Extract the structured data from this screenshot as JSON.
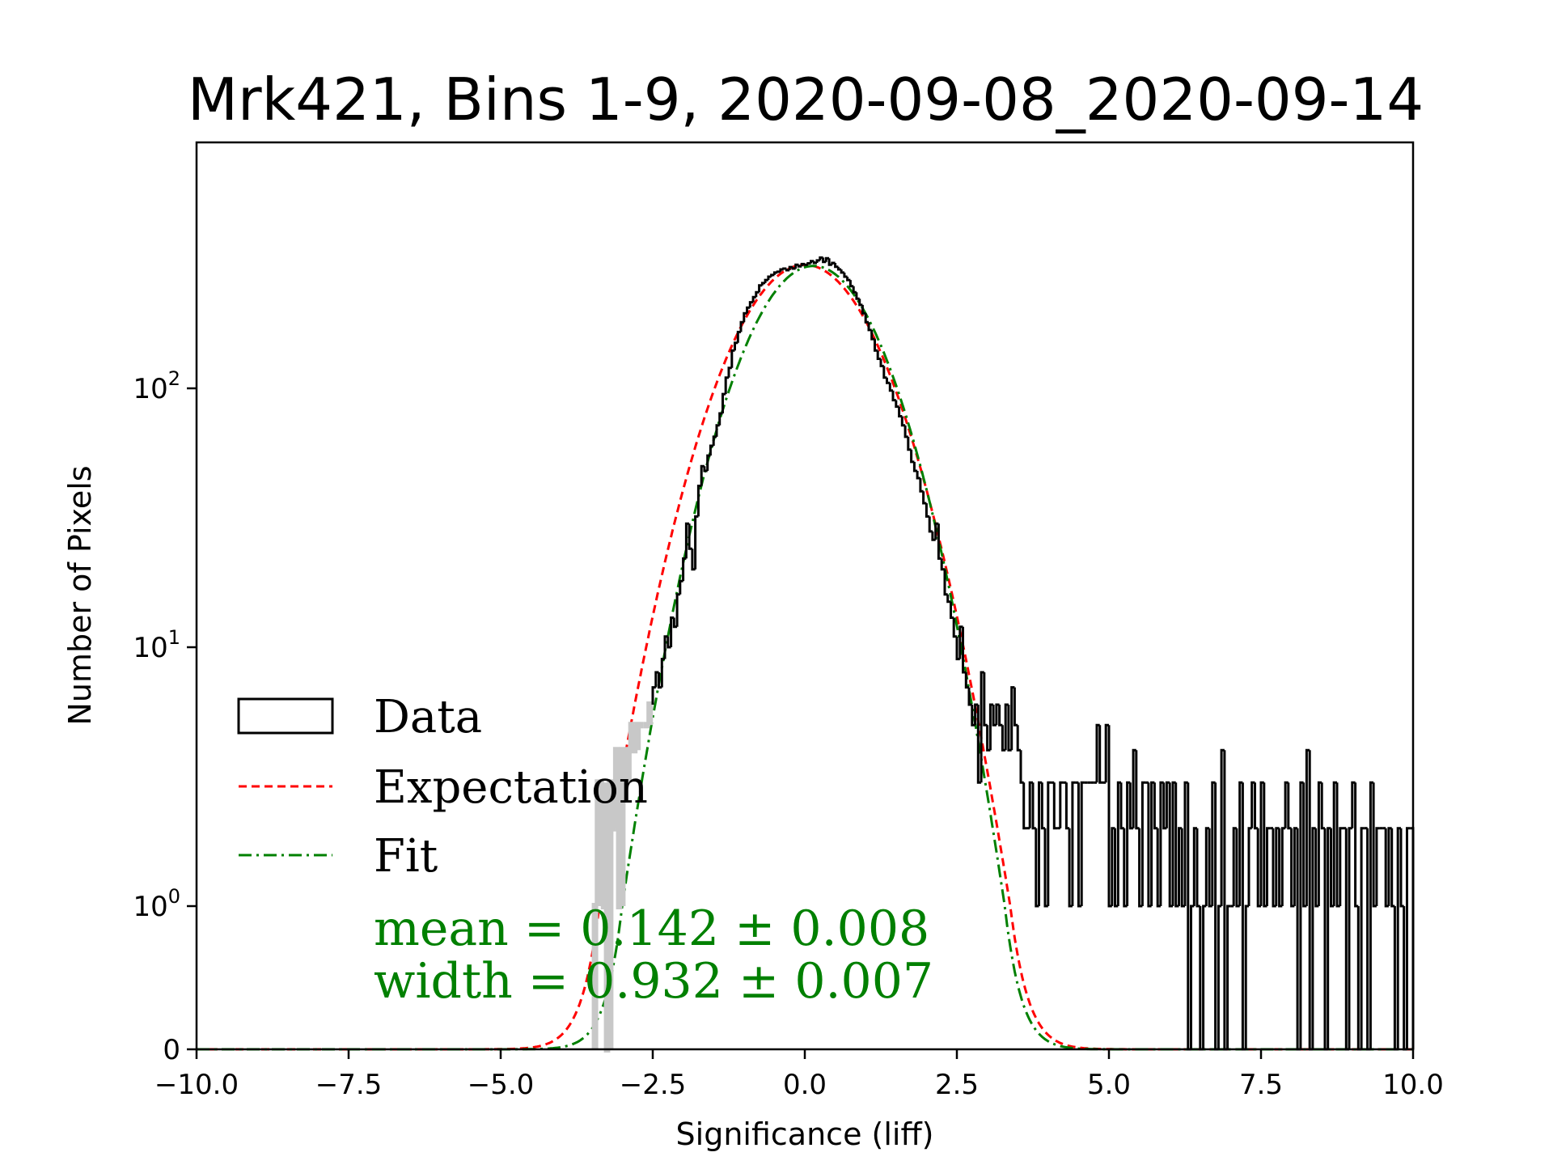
{
  "chart_data": {
    "type": "histogram",
    "title": "Mrk421, Bins 1-9, 2020-09-08_2020-09-14",
    "xlabel": "Significance (liff)",
    "ylabel": "Number of Pixels",
    "xlim": [
      -10,
      10
    ],
    "yscale": "symlog",
    "x_ticks": [
      -10,
      -7.5,
      -5,
      -2.5,
      0,
      2.5,
      5,
      7.5,
      10
    ],
    "x_tick_labels": [
      "−10.0",
      "−7.5",
      "−5.0",
      "−2.5",
      "0.0",
      "2.5",
      "5.0",
      "7.5",
      "10.0"
    ],
    "y_ticks": [
      {
        "value": 0,
        "base": "0",
        "exp": ""
      },
      {
        "value": 1,
        "base": "10",
        "exp": "0"
      },
      {
        "value": 10,
        "base": "10",
        "exp": "1"
      },
      {
        "value": 100,
        "base": "10",
        "exp": "2"
      }
    ],
    "series": [
      {
        "name": "Data",
        "kind": "step",
        "color": "#000000"
      },
      {
        "name": "Expectation",
        "kind": "gaussian",
        "mean": 0.0,
        "width": 1.0,
        "amplitude": 300,
        "color": "#ff0000"
      },
      {
        "name": "Fit",
        "kind": "gaussian",
        "mean": 0.142,
        "width": 0.932,
        "amplitude": 297,
        "color": "#008000"
      }
    ],
    "data_points": [
      [
        -3.45,
        1
      ],
      [
        -3.4,
        3
      ],
      [
        -3.35,
        3
      ],
      [
        -3.3,
        1
      ],
      [
        -3.25,
        0
      ],
      [
        -3.2,
        3
      ],
      [
        -3.15,
        2
      ],
      [
        -3.1,
        4
      ],
      [
        -3.05,
        1
      ],
      [
        -3.0,
        4
      ],
      [
        -2.95,
        3
      ],
      [
        -2.9,
        4
      ],
      [
        -2.85,
        5
      ],
      [
        -2.8,
        4
      ],
      [
        -2.75,
        5
      ],
      [
        -2.7,
        5
      ],
      [
        -2.65,
        5
      ],
      [
        -2.6,
        5
      ],
      [
        -2.55,
        6
      ],
      [
        -2.5,
        7
      ],
      [
        -2.45,
        8
      ],
      [
        -2.4,
        7
      ],
      [
        -2.35,
        9
      ],
      [
        -2.3,
        11
      ],
      [
        -2.25,
        10
      ],
      [
        -2.2,
        13
      ],
      [
        -2.15,
        12
      ],
      [
        -2.1,
        16
      ],
      [
        -2.05,
        18
      ],
      [
        -2.0,
        22
      ],
      [
        -1.95,
        30
      ],
      [
        -1.9,
        24
      ],
      [
        -1.85,
        20
      ],
      [
        -1.8,
        32
      ],
      [
        -1.75,
        42
      ],
      [
        -1.7,
        50
      ],
      [
        -1.65,
        48
      ],
      [
        -1.6,
        55
      ],
      [
        -1.55,
        60
      ],
      [
        -1.5,
        65
      ],
      [
        -1.45,
        72
      ],
      [
        -1.4,
        80
      ],
      [
        -1.35,
        95
      ],
      [
        -1.3,
        110
      ],
      [
        -1.25,
        120
      ],
      [
        -1.2,
        140
      ],
      [
        -1.15,
        150
      ],
      [
        -1.1,
        165
      ],
      [
        -1.05,
        180
      ],
      [
        -1.0,
        195
      ],
      [
        -0.95,
        205
      ],
      [
        -0.9,
        215
      ],
      [
        -0.85,
        225
      ],
      [
        -0.8,
        235
      ],
      [
        -0.75,
        250
      ],
      [
        -0.7,
        255
      ],
      [
        -0.65,
        262
      ],
      [
        -0.6,
        270
      ],
      [
        -0.55,
        274
      ],
      [
        -0.5,
        280
      ],
      [
        -0.45,
        282
      ],
      [
        -0.4,
        288
      ],
      [
        -0.35,
        290
      ],
      [
        -0.3,
        286
      ],
      [
        -0.25,
        294
      ],
      [
        -0.2,
        290
      ],
      [
        -0.15,
        300
      ],
      [
        -0.1,
        296
      ],
      [
        -0.05,
        302
      ],
      [
        0.0,
        300
      ],
      [
        0.05,
        304
      ],
      [
        0.1,
        310
      ],
      [
        0.15,
        305
      ],
      [
        0.2,
        312
      ],
      [
        0.25,
        320
      ],
      [
        0.3,
        308
      ],
      [
        0.35,
        318
      ],
      [
        0.4,
        300
      ],
      [
        0.45,
        305
      ],
      [
        0.5,
        295
      ],
      [
        0.55,
        288
      ],
      [
        0.6,
        280
      ],
      [
        0.65,
        270
      ],
      [
        0.7,
        262
      ],
      [
        0.75,
        248
      ],
      [
        0.8,
        235
      ],
      [
        0.85,
        222
      ],
      [
        0.9,
        210
      ],
      [
        0.95,
        195
      ],
      [
        1.0,
        180
      ],
      [
        1.05,
        168
      ],
      [
        1.1,
        155
      ],
      [
        1.15,
        140
      ],
      [
        1.2,
        130
      ],
      [
        1.25,
        122
      ],
      [
        1.3,
        110
      ],
      [
        1.35,
        105
      ],
      [
        1.4,
        98
      ],
      [
        1.45,
        90
      ],
      [
        1.5,
        85
      ],
      [
        1.55,
        78
      ],
      [
        1.6,
        72
      ],
      [
        1.65,
        65
      ],
      [
        1.7,
        58
      ],
      [
        1.75,
        52
      ],
      [
        1.8,
        48
      ],
      [
        1.85,
        45
      ],
      [
        1.9,
        40
      ],
      [
        1.95,
        36
      ],
      [
        2.0,
        32
      ],
      [
        2.05,
        28
      ],
      [
        2.1,
        26
      ],
      [
        2.15,
        30
      ],
      [
        2.2,
        22
      ],
      [
        2.25,
        20
      ],
      [
        2.3,
        16
      ],
      [
        2.35,
        15
      ],
      [
        2.4,
        13
      ],
      [
        2.45,
        11
      ],
      [
        2.5,
        9
      ],
      [
        2.55,
        12
      ],
      [
        2.6,
        8
      ],
      [
        2.65,
        7
      ],
      [
        2.7,
        6
      ],
      [
        2.75,
        5
      ],
      [
        2.8,
        6
      ],
      [
        2.85,
        3
      ],
      [
        2.9,
        8
      ],
      [
        2.95,
        5
      ],
      [
        3.0,
        4
      ],
      [
        3.05,
        6
      ],
      [
        3.1,
        5
      ],
      [
        3.15,
        6
      ],
      [
        3.2,
        5
      ],
      [
        3.25,
        4
      ],
      [
        3.3,
        6
      ],
      [
        3.35,
        4
      ],
      [
        3.4,
        7
      ],
      [
        3.45,
        5
      ],
      [
        3.5,
        4
      ],
      [
        3.55,
        3
      ],
      [
        3.6,
        2
      ],
      [
        3.65,
        2
      ],
      [
        3.7,
        3
      ],
      [
        3.75,
        2
      ],
      [
        3.8,
        1
      ],
      [
        3.85,
        3
      ],
      [
        3.9,
        2
      ],
      [
        3.95,
        1
      ],
      [
        4.0,
        3
      ],
      [
        4.05,
        3
      ],
      [
        4.1,
        2
      ],
      [
        4.15,
        2
      ],
      [
        4.2,
        3
      ],
      [
        4.25,
        3
      ],
      [
        4.3,
        2
      ],
      [
        4.35,
        1
      ],
      [
        4.4,
        3
      ],
      [
        4.45,
        3
      ],
      [
        4.5,
        1
      ],
      [
        4.55,
        3
      ],
      [
        4.6,
        3
      ],
      [
        4.65,
        3
      ],
      [
        4.7,
        3
      ],
      [
        4.75,
        3
      ],
      [
        4.8,
        5
      ],
      [
        4.85,
        3
      ],
      [
        4.9,
        3
      ],
      [
        4.95,
        5
      ],
      [
        5.0,
        1
      ],
      [
        5.05,
        2
      ],
      [
        5.1,
        1
      ],
      [
        5.15,
        3
      ],
      [
        5.2,
        2
      ],
      [
        5.25,
        1
      ],
      [
        5.3,
        3
      ],
      [
        5.35,
        2
      ],
      [
        5.4,
        4
      ],
      [
        5.45,
        2
      ],
      [
        5.5,
        1
      ],
      [
        5.55,
        3
      ],
      [
        5.6,
        3
      ],
      [
        5.65,
        1
      ],
      [
        5.7,
        3
      ],
      [
        5.75,
        2
      ],
      [
        5.8,
        1
      ],
      [
        5.85,
        3
      ],
      [
        5.9,
        2
      ],
      [
        5.95,
        3
      ],
      [
        6.0,
        1
      ],
      [
        6.05,
        3
      ],
      [
        6.1,
        1
      ],
      [
        6.15,
        2
      ],
      [
        6.2,
        1
      ],
      [
        6.25,
        3
      ],
      [
        6.3,
        0
      ],
      [
        6.35,
        1
      ],
      [
        6.4,
        2
      ],
      [
        6.45,
        1
      ],
      [
        6.5,
        0
      ],
      [
        6.55,
        1
      ],
      [
        6.6,
        2
      ],
      [
        6.65,
        1
      ],
      [
        6.7,
        3
      ],
      [
        6.75,
        0
      ],
      [
        6.8,
        1
      ],
      [
        6.85,
        4
      ],
      [
        6.9,
        0
      ],
      [
        6.95,
        1
      ],
      [
        7.0,
        1
      ],
      [
        7.05,
        2
      ],
      [
        7.1,
        1
      ],
      [
        7.15,
        3
      ],
      [
        7.2,
        0
      ],
      [
        7.25,
        1
      ],
      [
        7.3,
        2
      ],
      [
        7.35,
        3
      ],
      [
        7.4,
        2
      ],
      [
        7.45,
        1
      ],
      [
        7.5,
        3
      ],
      [
        7.55,
        1
      ],
      [
        7.6,
        2
      ],
      [
        7.65,
        2
      ],
      [
        7.7,
        1
      ],
      [
        7.75,
        2
      ],
      [
        7.8,
        1
      ],
      [
        7.85,
        2
      ],
      [
        7.9,
        3
      ],
      [
        7.95,
        2
      ],
      [
        8.0,
        1
      ],
      [
        8.05,
        2
      ],
      [
        8.1,
        0
      ],
      [
        8.15,
        3
      ],
      [
        8.2,
        1
      ],
      [
        8.25,
        4
      ],
      [
        8.3,
        0
      ],
      [
        8.35,
        2
      ],
      [
        8.4,
        1
      ],
      [
        8.45,
        3
      ],
      [
        8.5,
        2
      ],
      [
        8.55,
        0
      ],
      [
        8.6,
        2
      ],
      [
        8.65,
        1
      ],
      [
        8.7,
        3
      ],
      [
        8.75,
        1
      ],
      [
        8.8,
        2
      ],
      [
        8.85,
        2
      ],
      [
        8.9,
        0
      ],
      [
        8.95,
        2
      ],
      [
        9.0,
        3
      ],
      [
        9.05,
        1
      ],
      [
        9.1,
        0
      ],
      [
        9.15,
        2
      ],
      [
        9.2,
        2
      ],
      [
        9.25,
        0
      ],
      [
        9.3,
        3
      ],
      [
        9.35,
        1
      ],
      [
        9.4,
        2
      ],
      [
        9.45,
        2
      ],
      [
        9.5,
        2
      ],
      [
        9.55,
        1
      ],
      [
        9.6,
        2
      ],
      [
        9.65,
        1
      ],
      [
        9.7,
        0
      ],
      [
        9.75,
        2
      ],
      [
        9.8,
        1
      ],
      [
        9.85,
        0
      ],
      [
        9.9,
        2
      ],
      [
        9.95,
        2
      ]
    ],
    "legend": {
      "location": "lower-left",
      "entries": [
        "Data",
        "Expectation",
        "Fit"
      ]
    },
    "annotation": {
      "mean_line": "mean = 0.142 ± 0.008",
      "width_line": "width = 0.932 ± 0.007",
      "color": "#008000"
    }
  }
}
